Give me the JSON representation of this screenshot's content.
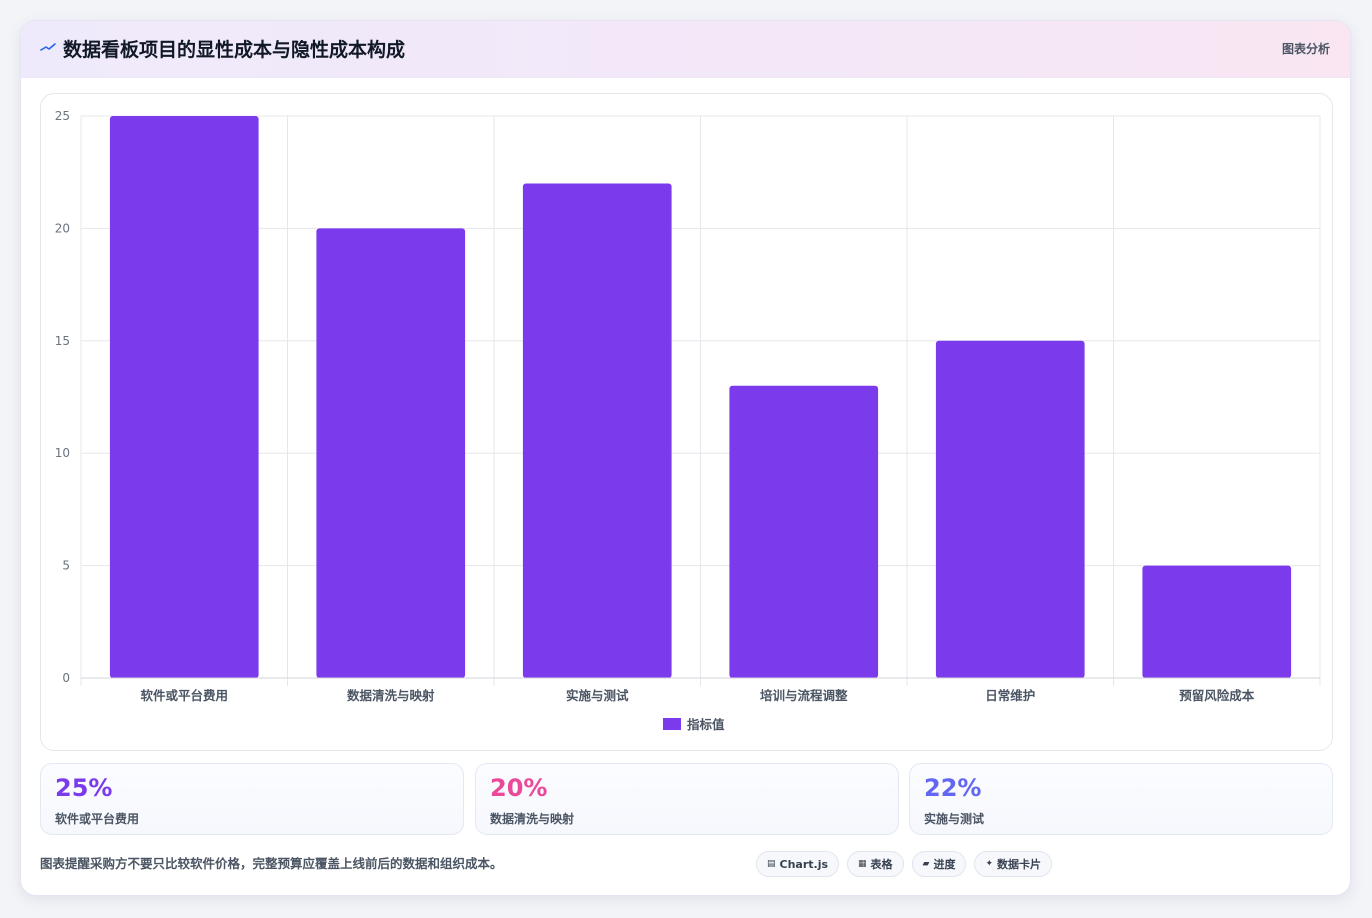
{
  "header": {
    "title": "数据看板项目的显性成本与隐性成本构成",
    "action_label": "图表分析",
    "icon": "trend-line-icon"
  },
  "chart_data": {
    "type": "bar",
    "categories": [
      "软件或平台费用",
      "数据清洗与映射",
      "实施与测试",
      "培训与流程调整",
      "日常维护",
      "预留风险成本"
    ],
    "series": [
      {
        "name": "指标值",
        "values": [
          25,
          20,
          22,
          13,
          15,
          5
        ],
        "color": "#7c3aed"
      }
    ],
    "ylim": [
      0,
      25
    ],
    "yticks": [
      0,
      5,
      10,
      15,
      20,
      25
    ],
    "grid": true,
    "legend_position": "bottom-center"
  },
  "stats": [
    {
      "value": "25%",
      "label": "软件或平台费用",
      "color": "#7c3aed"
    },
    {
      "value": "20%",
      "label": "数据清洗与映射",
      "color": "#ec4899"
    },
    {
      "value": "22%",
      "label": "实施与测试",
      "color": "#6366f1"
    }
  ],
  "footer": {
    "note": "图表提醒采购方不要只比较软件价格，完整预算应覆盖上线前后的数据和组织成本。",
    "chips": [
      {
        "icon": "▤",
        "icon_name": "chart-icon",
        "label": "Chart.js"
      },
      {
        "icon": "▦",
        "icon_name": "table-icon",
        "label": "表格"
      },
      {
        "icon": "▰",
        "icon_name": "progress-icon",
        "label": "进度"
      },
      {
        "icon": "✦",
        "icon_name": "card-icon",
        "label": "数据卡片"
      }
    ]
  }
}
